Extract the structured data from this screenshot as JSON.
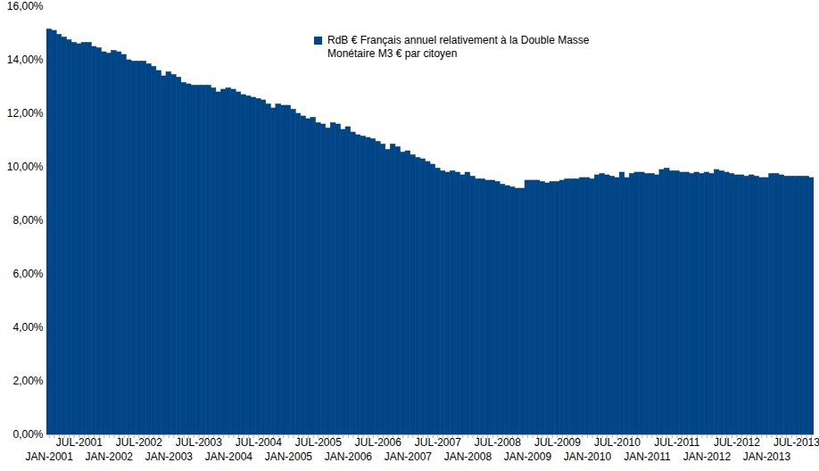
{
  "chart_data": {
    "type": "bar",
    "categories": [
      "JAN-2001",
      null,
      null,
      null,
      null,
      null,
      "JUL-2001",
      null,
      null,
      null,
      null,
      null,
      "JAN-2002",
      null,
      null,
      null,
      null,
      null,
      "JUL-2002",
      null,
      null,
      null,
      null,
      null,
      "JAN-2003",
      null,
      null,
      null,
      null,
      null,
      "JUL-2003",
      null,
      null,
      null,
      null,
      null,
      "JAN-2004",
      null,
      null,
      null,
      null,
      null,
      "JUL-2004",
      null,
      null,
      null,
      null,
      null,
      "JAN-2005",
      null,
      null,
      null,
      null,
      null,
      "JUL-2005",
      null,
      null,
      null,
      null,
      null,
      "JAN-2006",
      null,
      null,
      null,
      null,
      null,
      "JUL-2006",
      null,
      null,
      null,
      null,
      null,
      "JAN-2007",
      null,
      null,
      null,
      null,
      null,
      "JUL-2007",
      null,
      null,
      null,
      null,
      null,
      "JAN-2008",
      null,
      null,
      null,
      null,
      null,
      "JUL-2008",
      null,
      null,
      null,
      null,
      null,
      "JAN-2009",
      null,
      null,
      null,
      null,
      null,
      "JUL-2009",
      null,
      null,
      null,
      null,
      null,
      "JAN-2010",
      null,
      null,
      null,
      null,
      null,
      "JUL-2010",
      null,
      null,
      null,
      null,
      null,
      "JAN-2011",
      null,
      null,
      null,
      null,
      null,
      "JUL-2011",
      null,
      null,
      null,
      null,
      null,
      "JAN-2012",
      null,
      null,
      null,
      null,
      null,
      "JUL-2012",
      null,
      null,
      null,
      null,
      null,
      "JAN-2013",
      null,
      null,
      null,
      null,
      null,
      "JUL-2013",
      null,
      null,
      null
    ],
    "series": [
      {
        "name": "RdB € Français annuel relativement à la Double Masse Monétaire M3 € par citoyen",
        "color": "#004586",
        "values": [
          15.15,
          15.1,
          14.95,
          14.85,
          14.75,
          14.65,
          14.6,
          14.65,
          14.65,
          14.5,
          14.45,
          14.3,
          14.25,
          14.35,
          14.3,
          14.2,
          14.0,
          13.95,
          13.95,
          13.95,
          13.85,
          13.75,
          13.6,
          13.4,
          13.55,
          13.45,
          13.35,
          13.15,
          13.1,
          13.05,
          13.05,
          13.05,
          13.05,
          12.95,
          12.8,
          12.9,
          12.95,
          12.9,
          12.8,
          12.7,
          12.65,
          12.6,
          12.55,
          12.5,
          12.35,
          12.2,
          12.35,
          12.3,
          12.3,
          12.15,
          12.0,
          11.9,
          11.8,
          11.85,
          11.65,
          11.6,
          11.45,
          11.65,
          11.6,
          11.4,
          11.5,
          11.3,
          11.2,
          11.15,
          11.1,
          11.05,
          10.95,
          10.85,
          10.65,
          10.85,
          10.75,
          10.55,
          10.6,
          10.45,
          10.35,
          10.3,
          10.2,
          10.1,
          9.95,
          9.85,
          9.8,
          9.85,
          9.8,
          9.7,
          9.8,
          9.65,
          9.55,
          9.55,
          9.5,
          9.5,
          9.45,
          9.35,
          9.3,
          9.25,
          9.2,
          9.2,
          9.5,
          9.5,
          9.5,
          9.45,
          9.4,
          9.45,
          9.45,
          9.5,
          9.55,
          9.55,
          9.55,
          9.6,
          9.6,
          9.55,
          9.7,
          9.75,
          9.7,
          9.65,
          9.6,
          9.8,
          9.6,
          9.75,
          9.8,
          9.8,
          9.75,
          9.75,
          9.7,
          9.9,
          9.95,
          9.85,
          9.85,
          9.8,
          9.8,
          9.75,
          9.8,
          9.75,
          9.8,
          9.75,
          9.9,
          9.85,
          9.8,
          9.75,
          9.7,
          9.7,
          9.65,
          9.7,
          9.65,
          9.6,
          9.6,
          9.75,
          9.75,
          9.7,
          9.65,
          9.65,
          9.65,
          9.65,
          9.65,
          9.6
        ]
      }
    ],
    "ylim": [
      0,
      16
    ],
    "yticks": [
      {
        "value": 0,
        "label": "0,00%"
      },
      {
        "value": 2,
        "label": "2,00%"
      },
      {
        "value": 4,
        "label": "4,00%"
      },
      {
        "value": 6,
        "label": "6,00%"
      },
      {
        "value": 8,
        "label": "8,00%"
      },
      {
        "value": 10,
        "label": "10,00%"
      },
      {
        "value": 12,
        "label": "12,00%"
      },
      {
        "value": 14,
        "label": "14,00%"
      },
      {
        "value": 16,
        "label": "16,00%"
      }
    ],
    "grid": false,
    "legend": "top"
  }
}
